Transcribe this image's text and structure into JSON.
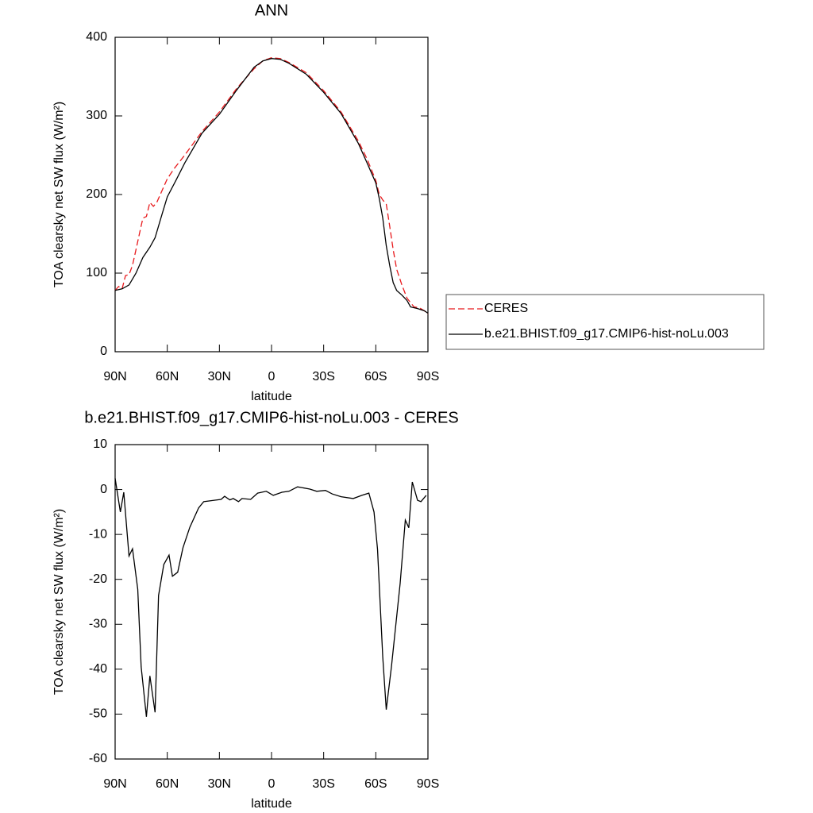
{
  "chart_data": [
    {
      "type": "line",
      "title": "ANN",
      "xlabel": "latitude",
      "ylabel": "TOA clearsky net SW flux (W/m²)",
      "xlim": [
        90,
        -90
      ],
      "xticks": [
        {
          "value": 90,
          "label": "90N"
        },
        {
          "value": 60,
          "label": "60N"
        },
        {
          "value": 30,
          "label": "30N"
        },
        0,
        {
          "value": -30,
          "label": "30S"
        },
        {
          "value": -60,
          "label": "60S"
        },
        {
          "value": -90,
          "label": "90S"
        }
      ],
      "ylim": [
        0,
        400
      ],
      "yticks": [
        0,
        100,
        200,
        300,
        400
      ],
      "legend": "right",
      "series": [
        {
          "name": "CERES",
          "color": "#e8191c",
          "line_style": "dashed",
          "x": [
            90,
            88,
            86,
            84,
            82,
            80,
            78,
            76,
            74,
            72,
            70,
            68,
            66,
            64,
            60,
            56,
            50,
            40,
            30,
            20,
            10,
            5,
            0,
            -5,
            -10,
            -20,
            -30,
            -40,
            -50,
            -55,
            -60,
            -62,
            -64,
            -66,
            -68,
            -70,
            -72,
            -75,
            -78,
            -82,
            -85,
            -88,
            -90
          ],
          "values": [
            78,
            83,
            80,
            97,
            98,
            110,
            130,
            150,
            170,
            172,
            190,
            185,
            190,
            200,
            220,
            233,
            250,
            280,
            305,
            335,
            360,
            370,
            374,
            373,
            368,
            355,
            332,
            305,
            268,
            245,
            218,
            200,
            193,
            188,
            160,
            130,
            105,
            85,
            68,
            57,
            56,
            52,
            48
          ]
        },
        {
          "name": "b.e21.BHIST.f09_g17.CMIP6-hist-noLu.003",
          "color": "#000000",
          "line_style": "solid",
          "x": [
            90,
            86,
            82,
            78,
            74,
            70,
            67,
            63,
            60,
            55,
            50,
            40,
            30,
            20,
            10,
            5,
            0,
            -5,
            -10,
            -20,
            -30,
            -40,
            -50,
            -55,
            -60,
            -62,
            -64,
            -66,
            -68,
            -70,
            -72,
            -75,
            -78,
            -80,
            -84,
            -88,
            -90
          ],
          "values": [
            78,
            80,
            85,
            100,
            120,
            133,
            145,
            175,
            197,
            218,
            240,
            278,
            302,
            333,
            362,
            370,
            373,
            372,
            367,
            353,
            330,
            303,
            265,
            240,
            215,
            195,
            170,
            135,
            110,
            88,
            78,
            72,
            65,
            57,
            55,
            52,
            49
          ]
        }
      ]
    },
    {
      "type": "line",
      "title": "b.e21.BHIST.f09_g17.CMIP6-hist-noLu.003 - CERES",
      "xlabel": "latitude",
      "ylabel": "TOA clearsky net SW flux (W/m²)",
      "xlim": [
        90,
        -90
      ],
      "xticks": [
        {
          "value": 90,
          "label": "90N"
        },
        {
          "value": 60,
          "label": "60N"
        },
        {
          "value": 30,
          "label": "30N"
        },
        0,
        {
          "value": -30,
          "label": "30S"
        },
        {
          "value": -60,
          "label": "60S"
        },
        {
          "value": -90,
          "label": "90S"
        }
      ],
      "ylim": [
        -60,
        10
      ],
      "yticks": [
        -60,
        -50,
        -40,
        -30,
        -20,
        -10,
        0,
        10
      ],
      "color": "#000000",
      "x": [
        90,
        87,
        85,
        82,
        80,
        77,
        75,
        72,
        70,
        67,
        65,
        62,
        59,
        57,
        54,
        51,
        47,
        42,
        39,
        33,
        29,
        27,
        24,
        22,
        19,
        17,
        12,
        8,
        3,
        -1,
        -6,
        -10,
        -15,
        -22,
        -26,
        -31,
        -35,
        -40,
        -47,
        -52,
        -56,
        -59,
        -61,
        -64,
        -66,
        -69,
        -74,
        -77,
        -79,
        -81,
        -84,
        -86,
        -89
      ],
      "values": [
        2.5,
        -5,
        -0.6,
        -14.8,
        -13.2,
        -22.2,
        -39.5,
        -50.6,
        -41.5,
        -49.6,
        -23.6,
        -16.7,
        -14.6,
        -19.3,
        -18.4,
        -13,
        -8.4,
        -4.1,
        -2.7,
        -2.4,
        -2.2,
        -1.5,
        -2.3,
        -2,
        -2.7,
        -2,
        -2.2,
        -0.8,
        -0.4,
        -1.3,
        -0.6,
        -0.4,
        0.6,
        0.1,
        -0.4,
        -0.2,
        -1,
        -1.6,
        -2,
        -1.3,
        -0.8,
        -5,
        -13.3,
        -37.3,
        -49,
        -39.5,
        -20.9,
        -6.8,
        -8.5,
        1.7,
        -2.4,
        -2.7,
        -1.3
      ]
    }
  ]
}
